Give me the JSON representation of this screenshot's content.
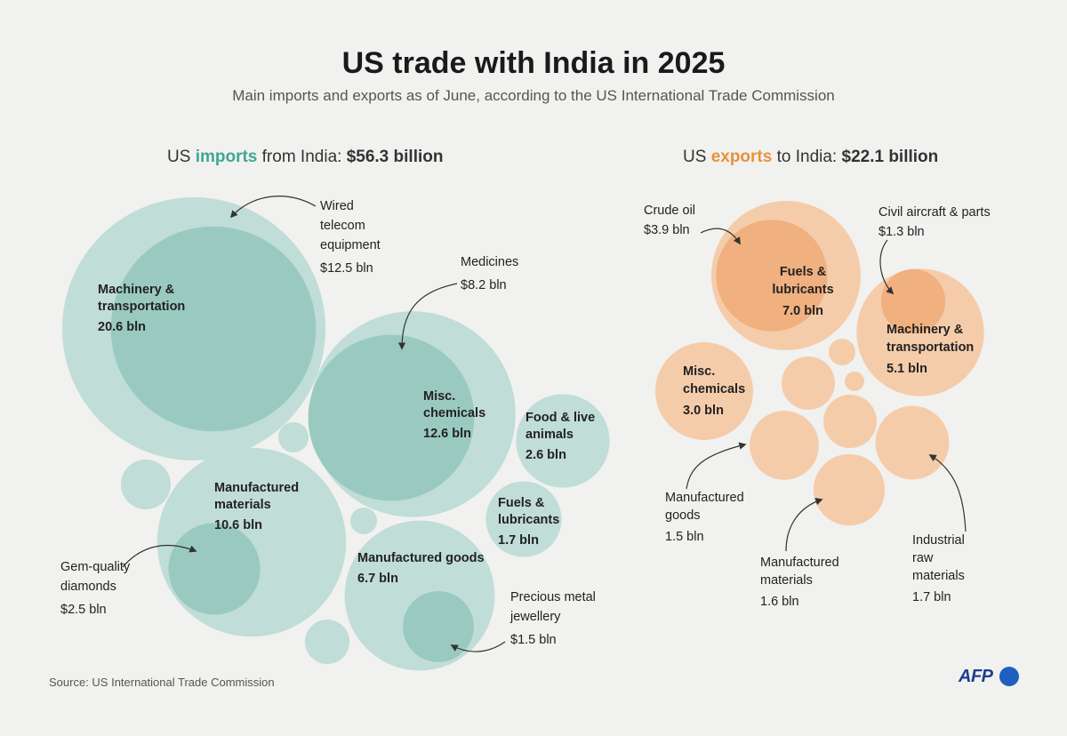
{
  "title": "US trade with India in 2025",
  "subtitle": "Main imports and exports as of June, according to the US International Trade Commission",
  "imports_header": {
    "pre": "US ",
    "highlight": "imports",
    "mid": " from India: ",
    "total": "$56.3 billion"
  },
  "exports_header": {
    "pre": "US ",
    "highlight": "exports",
    "mid": " to India: ",
    "total": "$22.1 billion"
  },
  "source": "Source: US International Trade Commission",
  "logo_text": "AFP",
  "colors": {
    "imports_light": "#c0ddd7",
    "imports_dark": "#9acabf",
    "imports_accent": "#3fa796",
    "exports_light": "#f5ccaa",
    "exports_dark": "#f0b07f",
    "exports_accent": "#e8913c",
    "background": "#f1f1ef"
  },
  "chart_data": [
    {
      "type": "bubble",
      "title": "US imports from India: $56.3 billion",
      "unit": "bln",
      "categories": [
        {
          "name": "Machinery & transportation",
          "value": 20.6,
          "value_label": "20.6 bln",
          "sub": {
            "name": "Wired telecom equipment",
            "value": 12.5,
            "value_label": "$12.5 bln"
          }
        },
        {
          "name": "Misc. chemicals",
          "value": 12.6,
          "value_label": "12.6 bln",
          "sub": {
            "name": "Medicines",
            "value": 8.2,
            "value_label": "$8.2 bln"
          }
        },
        {
          "name": "Manufactured materials",
          "value": 10.6,
          "value_label": "10.6 bln",
          "sub": {
            "name": "Gem-quality diamonds",
            "value": 2.5,
            "value_label": "$2.5 bln"
          }
        },
        {
          "name": "Manufactured goods",
          "value": 6.7,
          "value_label": "6.7 bln",
          "sub": {
            "name": "Precious metal jewellery",
            "value": 1.5,
            "value_label": "$1.5 bln"
          }
        },
        {
          "name": "Food & live animals",
          "value": 2.6,
          "value_label": "2.6 bln"
        },
        {
          "name": "Fuels & lubricants",
          "value": 1.7,
          "value_label": "1.7 bln"
        }
      ]
    },
    {
      "type": "bubble",
      "title": "US exports to India: $22.1 billion",
      "unit": "bln",
      "categories": [
        {
          "name": "Fuels & lubricants",
          "value": 7.0,
          "value_label": "7.0 bln",
          "sub": {
            "name": "Crude oil",
            "value": 3.9,
            "value_label": "$3.9 bln"
          }
        },
        {
          "name": "Machinery & transportation",
          "value": 5.1,
          "value_label": "5.1 bln",
          "sub": {
            "name": "Civil aircraft & parts",
            "value": 1.3,
            "value_label": "$1.3 bln"
          }
        },
        {
          "name": "Misc. chemicals",
          "value": 3.0,
          "value_label": "3.0 bln"
        },
        {
          "name": "Industrial raw materials",
          "value": 1.7,
          "value_label": "1.7 bln"
        },
        {
          "name": "Manufactured materials",
          "value": 1.6,
          "value_label": "1.6 bln"
        },
        {
          "name": "Manufactured goods",
          "value": 1.5,
          "value_label": "1.5 bln"
        }
      ]
    }
  ]
}
